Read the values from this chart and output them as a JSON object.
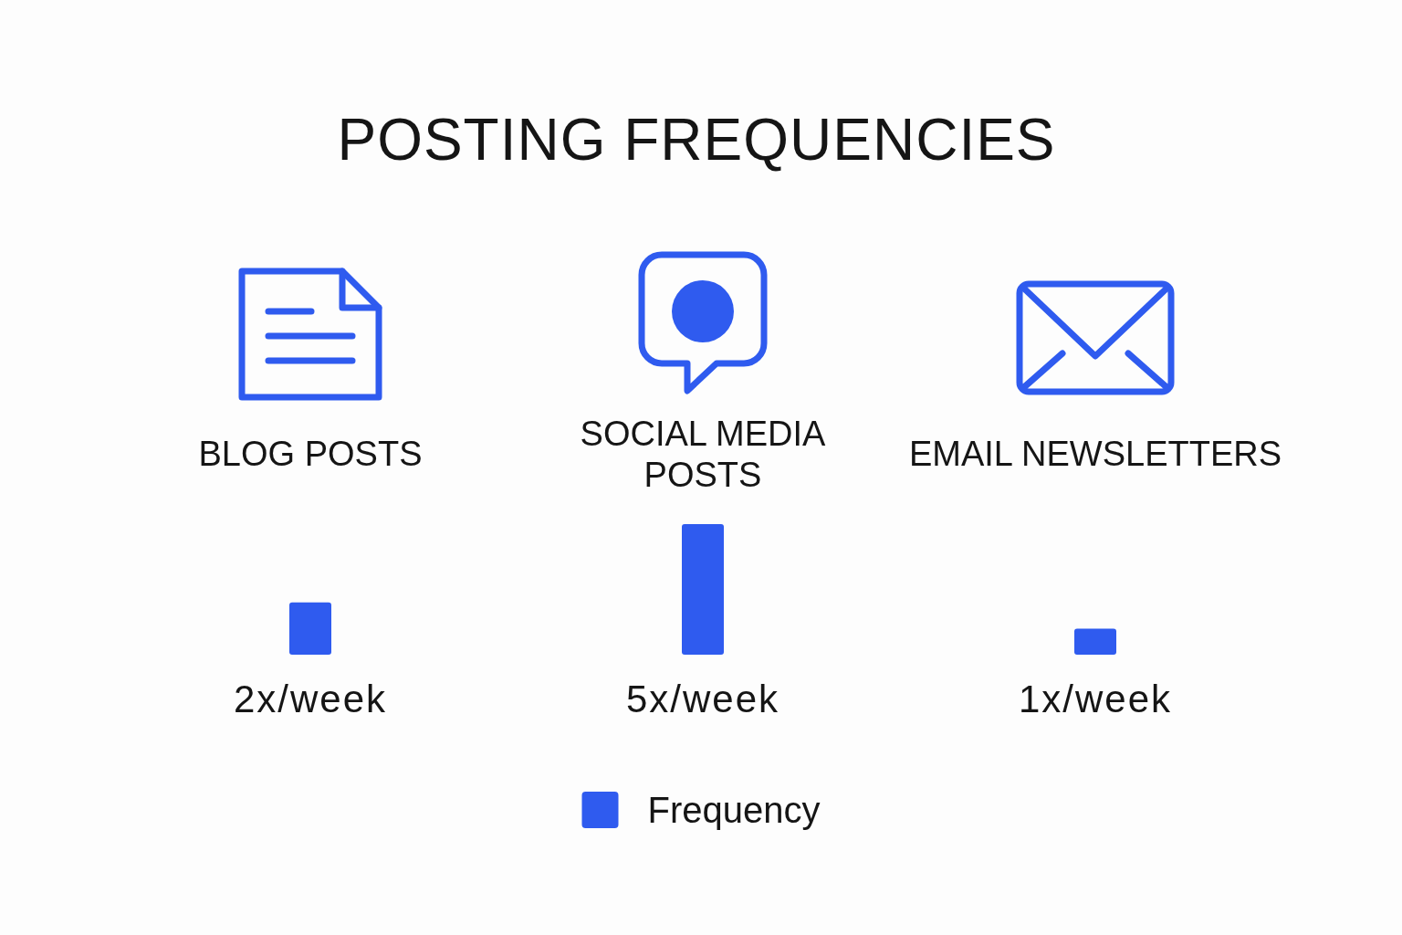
{
  "chart_data": {
    "type": "bar",
    "title": "POSTING FREQUENCIES",
    "categories": [
      "BLOG POSTS",
      "SOCIAL MEDIA POSTS",
      "EMAIL NEWSLETTERS"
    ],
    "series": [
      {
        "name": "Frequency",
        "color": "#2f5bef",
        "values": [
          2,
          5,
          1
        ],
        "value_labels": [
          "2x/week",
          "5x/week",
          "1x/week"
        ]
      }
    ],
    "legend": "bottom"
  }
}
